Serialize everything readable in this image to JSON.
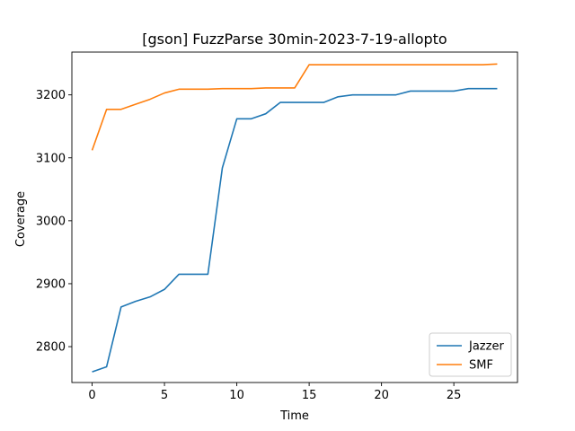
{
  "chart_data": {
    "type": "line",
    "title": "[gson] FuzzParse 30min-2023-7-19-allopto",
    "xlabel": "Time",
    "ylabel": "Coverage",
    "xlim": [
      -1.4,
      29.4
    ],
    "ylim": [
      2743,
      3268
    ],
    "xticks": [
      0,
      5,
      10,
      15,
      20,
      25
    ],
    "yticks": [
      2800,
      2900,
      3000,
      3100,
      3200
    ],
    "grid": false,
    "legend_position": "lower-right",
    "series": [
      {
        "name": "Jazzer",
        "color": "#1f77b4",
        "x": [
          0,
          1,
          2,
          3,
          4,
          5,
          6,
          7,
          8,
          9,
          10,
          11,
          12,
          13,
          14,
          15,
          16,
          17,
          18,
          19,
          20,
          21,
          22,
          23,
          24,
          25,
          26,
          27,
          28
        ],
        "y": [
          2760,
          2768,
          2863,
          2872,
          2879,
          2891,
          2915,
          2915,
          2915,
          3084,
          3162,
          3162,
          3170,
          3188,
          3188,
          3188,
          3188,
          3197,
          3200,
          3200,
          3200,
          3200,
          3206,
          3206,
          3206,
          3206,
          3210,
          3210,
          3210
        ]
      },
      {
        "name": "SMF",
        "color": "#ff7f0e",
        "x": [
          0,
          1,
          2,
          3,
          4,
          5,
          6,
          7,
          8,
          9,
          10,
          11,
          12,
          13,
          14,
          15,
          16,
          17,
          18,
          19,
          20,
          21,
          22,
          23,
          24,
          25,
          26,
          27,
          28
        ],
        "y": [
          3112,
          3177,
          3177,
          3185,
          3193,
          3203,
          3209,
          3209,
          3209,
          3210,
          3210,
          3210,
          3211,
          3211,
          3211,
          3248,
          3248,
          3248,
          3248,
          3248,
          3248,
          3248,
          3248,
          3248,
          3248,
          3248,
          3248,
          3248,
          3249
        ]
      }
    ]
  }
}
